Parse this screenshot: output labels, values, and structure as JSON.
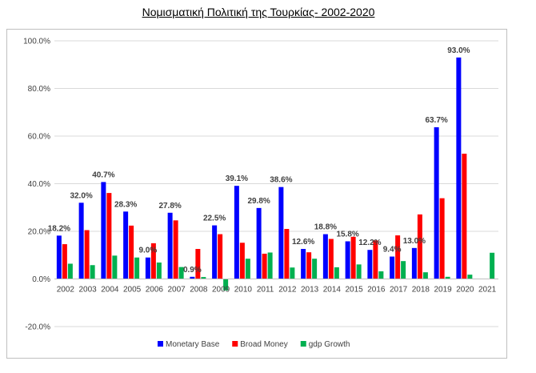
{
  "title": "Νομισματική Πολιτική της Τουρκίας- 2002-2020",
  "chart_data": {
    "type": "bar",
    "title": "Νομισματική Πολιτική της Τουρκίας- 2002-2020",
    "xlabel": "",
    "ylabel": "",
    "ylim": [
      -0.2,
      1.0
    ],
    "y_ticks": [
      -0.2,
      0.0,
      0.2,
      0.4,
      0.6,
      0.8,
      1.0
    ],
    "y_tick_labels": [
      "-20.0%",
      "0.0%",
      "20.0%",
      "40.0%",
      "60.0%",
      "80.0%",
      "100.0%"
    ],
    "grid": true,
    "legend_position": "bottom",
    "categories": [
      "2002",
      "2003",
      "2004",
      "2005",
      "2006",
      "2007",
      "2008",
      "2009",
      "2010",
      "2011",
      "2012",
      "2013",
      "2014",
      "2015",
      "2016",
      "2017",
      "2018",
      "2019",
      "2020",
      "2021"
    ],
    "series": [
      {
        "name": "Monetary Base",
        "color": "#0000ff",
        "values": [
          0.182,
          0.32,
          0.407,
          0.283,
          0.09,
          0.278,
          0.009,
          0.225,
          0.391,
          0.298,
          0.386,
          0.126,
          0.188,
          0.158,
          0.122,
          0.094,
          0.13,
          0.637,
          0.93,
          null
        ],
        "data_labels": [
          "18.2%",
          "32.0%",
          "40.7%",
          "28.3%",
          "9.0%",
          "27.8%",
          "0.9%",
          "22.5%",
          "39.1%",
          "29.8%",
          "38.6%",
          "12.6%",
          "18.8%",
          "15.8%",
          "12.2%",
          "9.4%",
          "13.0%",
          "63.7%",
          "93.0%",
          ""
        ]
      },
      {
        "name": "Broad Money",
        "color": "#ff0000",
        "values": [
          0.146,
          0.205,
          0.361,
          0.224,
          0.15,
          0.246,
          0.126,
          0.188,
          0.152,
          0.106,
          0.21,
          0.112,
          0.168,
          0.177,
          0.162,
          0.183,
          0.271,
          0.339,
          0.526,
          null
        ]
      },
      {
        "name": "gdp Growth",
        "color": "#00b050",
        "values": [
          0.064,
          0.058,
          0.098,
          0.09,
          0.069,
          0.05,
          0.008,
          -0.048,
          0.085,
          0.111,
          0.048,
          0.085,
          0.049,
          0.061,
          0.032,
          0.075,
          0.028,
          0.009,
          0.018,
          0.11
        ]
      }
    ]
  }
}
